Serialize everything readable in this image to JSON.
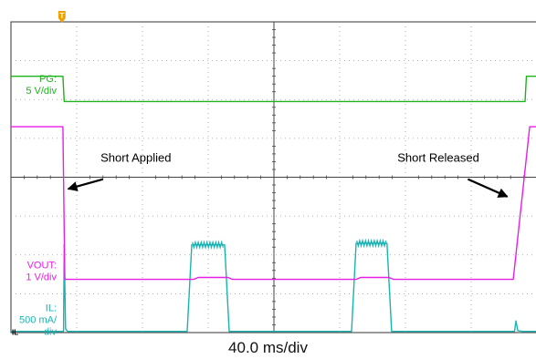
{
  "chart_data": {
    "type": "line",
    "timebase": "40.0 ms/div",
    "trigger_marker": "T",
    "channels": [
      {
        "key": "pg",
        "label_lines": [
          "PG:",
          "5 V/div"
        ],
        "color": "#1db31d",
        "levels_div": {
          "high": 6.6,
          "low": 5.95
        },
        "points_div": [
          [
            0.0,
            6.6
          ],
          [
            0.79,
            6.6
          ],
          [
            0.81,
            5.95
          ],
          [
            7.82,
            5.95
          ],
          [
            7.84,
            6.6
          ],
          [
            8.0,
            6.6
          ]
        ]
      },
      {
        "key": "vout",
        "label_lines": [
          "VOUT:",
          "1 V/div"
        ],
        "color": "#e61ee6",
        "points_div": [
          [
            0.0,
            5.3
          ],
          [
            0.79,
            5.3
          ],
          [
            0.82,
            1.37
          ],
          [
            2.78,
            1.37
          ],
          [
            2.85,
            1.42
          ],
          [
            3.3,
            1.42
          ],
          [
            3.37,
            1.37
          ],
          [
            5.25,
            1.37
          ],
          [
            5.32,
            1.42
          ],
          [
            5.75,
            1.42
          ],
          [
            5.82,
            1.37
          ],
          [
            7.64,
            1.37
          ],
          [
            7.89,
            5.3
          ],
          [
            8.0,
            5.3
          ]
        ]
      },
      {
        "key": "il",
        "label_lines": [
          "IL:",
          "500 mA/",
          "div"
        ],
        "ground_marker": "IL",
        "color": "#1ab3b3",
        "points_div": [
          [
            0.0,
            0.03
          ],
          [
            0.8,
            0.03
          ],
          [
            0.81,
            2.27
          ],
          [
            0.83,
            0.1
          ],
          [
            0.86,
            0.03
          ],
          [
            2.68,
            0.03
          ],
          [
            2.75,
            2.26
          ],
          [
            3.25,
            2.26
          ],
          [
            3.32,
            0.03
          ],
          [
            5.18,
            0.03
          ],
          [
            5.25,
            2.3
          ],
          [
            5.72,
            2.3
          ],
          [
            5.79,
            0.03
          ],
          [
            7.66,
            0.03
          ],
          [
            7.68,
            0.3
          ],
          [
            7.71,
            0.05
          ],
          [
            7.78,
            0.03
          ],
          [
            8.0,
            0.03
          ]
        ]
      }
    ],
    "annotations": [
      {
        "text": "Short Applied",
        "at_div": [
          1.9,
          4.4
        ],
        "arrow_from_div": [
          1.4,
          3.95
        ],
        "arrow_to_div": [
          0.87,
          3.7
        ]
      },
      {
        "text": "Short Released",
        "at_div": [
          6.5,
          4.4
        ],
        "arrow_from_div": [
          6.95,
          3.95
        ],
        "arrow_to_div": [
          7.55,
          3.5
        ]
      }
    ],
    "grid": {
      "h_divs": 8,
      "v_divs": 8,
      "dotted": true,
      "center_axes": true
    }
  }
}
